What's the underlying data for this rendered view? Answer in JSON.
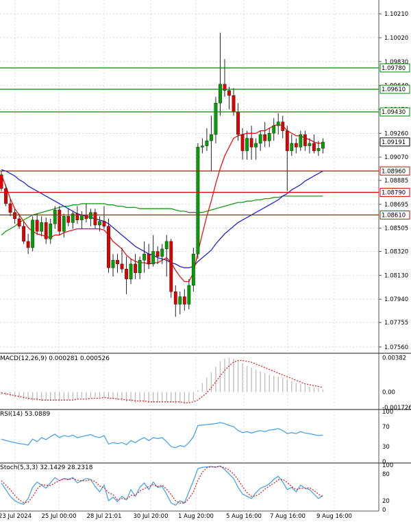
{
  "colors": {
    "up_candle": "#00a000",
    "down_candle": "#e00000",
    "wick": "#000000",
    "ma_fast": "#ee1111",
    "ma_mid": "#2222dd",
    "ma_slow": "#1a9a1a",
    "level_green": "#008800",
    "level_red": "#dd0000",
    "grid": "#b8c0c8",
    "macd_hist": "#c0c0c0",
    "macd_signal": "#dd2222",
    "rsi_line": "#4aa3e8",
    "stoch_k": "#4aa3e8",
    "stoch_d": "#dd2222"
  },
  "chart_data": [
    {
      "type": "candlestick",
      "price_axis": {
        "ticks": [
          "1.10210",
          "1.10020",
          "1.09830",
          "1.09640",
          "1.09450",
          "1.09260",
          "1.09070",
          "1.08885",
          "1.08695",
          "1.08505",
          "1.08320",
          "1.08130",
          "1.07940",
          "1.07755",
          "1.07560"
        ],
        "ylim": [
          1.0751,
          1.1032
        ],
        "grid": true,
        "price_tag": "1.09191"
      },
      "time_axis": {
        "labels": [
          "23 Jul 2024",
          "25 Jul 00:00",
          "28 Jul 21:01",
          "30 Jul 20:00",
          "1 Aug 20:00",
          "5 Aug 16:00",
          "7 Aug 16:00",
          "9 Aug 16:00"
        ]
      },
      "levels": [
        {
          "value": 1.0978,
          "label": "1.09780",
          "kind": "resistance"
        },
        {
          "value": 1.0961,
          "label": "1.09610",
          "kind": "resistance"
        },
        {
          "value": 1.0943,
          "label": "1.09430",
          "kind": "resistance"
        },
        {
          "value": 1.0896,
          "label": "1.08960",
          "kind": "support"
        },
        {
          "value": 1.0879,
          "label": "1.08790",
          "kind": "support"
        },
        {
          "value": 1.0861,
          "label": "1.08610",
          "kind": "support"
        }
      ],
      "candles": [
        [
          1.0893,
          1.0896,
          1.088,
          1.0882
        ],
        [
          1.0882,
          1.0885,
          1.0868,
          1.087
        ],
        [
          1.087,
          1.0874,
          1.086,
          1.0863
        ],
        [
          1.0863,
          1.0866,
          1.0854,
          1.0858
        ],
        [
          1.0858,
          1.0862,
          1.085,
          1.0852
        ],
        [
          1.0852,
          1.0856,
          1.0838,
          1.084
        ],
        [
          1.084,
          1.0846,
          1.083,
          1.0835
        ],
        [
          1.0835,
          1.086,
          1.0832,
          1.0857
        ],
        [
          1.0857,
          1.0862,
          1.0845,
          1.0848
        ],
        [
          1.0848,
          1.086,
          1.0844,
          1.0855
        ],
        [
          1.0855,
          1.0859,
          1.0838,
          1.0842
        ],
        [
          1.0842,
          1.0858,
          1.0838,
          1.0854
        ],
        [
          1.0854,
          1.0868,
          1.085,
          1.0865
        ],
        [
          1.0865,
          1.0868,
          1.0845,
          1.0848
        ],
        [
          1.0848,
          1.0862,
          1.0843,
          1.086
        ],
        [
          1.086,
          1.0866,
          1.0852,
          1.0855
        ],
        [
          1.0855,
          1.0864,
          1.085,
          1.0862
        ],
        [
          1.0862,
          1.0868,
          1.0854,
          1.0857
        ],
        [
          1.0857,
          1.0864,
          1.085,
          1.0861
        ],
        [
          1.0861,
          1.087,
          1.0855,
          1.0858
        ],
        [
          1.0858,
          1.0866,
          1.0852,
          1.0863
        ],
        [
          1.0863,
          1.0866,
          1.085,
          1.0853
        ],
        [
          1.0853,
          1.086,
          1.0848,
          1.0856
        ],
        [
          1.0856,
          1.0868,
          1.085,
          1.0852
        ],
        [
          1.0852,
          1.0858,
          1.0815,
          1.0819
        ],
        [
          1.0819,
          1.083,
          1.0812,
          1.0825
        ],
        [
          1.0825,
          1.083,
          1.0815,
          1.0822
        ],
        [
          1.0822,
          1.0835,
          1.0815,
          1.0818
        ],
        [
          1.0818,
          1.0828,
          1.0798,
          1.081
        ],
        [
          1.081,
          1.0826,
          1.0806,
          1.0822
        ],
        [
          1.0822,
          1.083,
          1.081,
          1.0815
        ],
        [
          1.0815,
          1.0828,
          1.081,
          1.0825
        ],
        [
          1.0825,
          1.084,
          1.0815,
          1.083
        ],
        [
          1.083,
          1.0838,
          1.0818,
          1.0822
        ],
        [
          1.0822,
          1.0845,
          1.082,
          1.0832
        ],
        [
          1.0832,
          1.0836,
          1.0822,
          1.0828
        ],
        [
          1.0828,
          1.0838,
          1.0822,
          1.0834
        ],
        [
          1.0834,
          1.0845,
          1.0812,
          1.084
        ],
        [
          1.084,
          1.0842,
          1.0795,
          1.08
        ],
        [
          1.08,
          1.0805,
          1.078,
          1.079
        ],
        [
          1.079,
          1.08,
          1.0782,
          1.0796
        ],
        [
          1.0796,
          1.0802,
          1.0785,
          1.079
        ],
        [
          1.079,
          1.081,
          1.0786,
          1.0805
        ],
        [
          1.0805,
          1.0835,
          1.08,
          1.083
        ],
        [
          1.083,
          1.0918,
          1.0826,
          1.0915
        ],
        [
          1.0915,
          1.0922,
          1.091,
          1.0916
        ],
        [
          1.0916,
          1.093,
          1.0912,
          1.092
        ],
        [
          1.092,
          1.094,
          1.0896,
          1.0925
        ],
        [
          1.0925,
          1.0955,
          1.0918,
          1.095
        ],
        [
          1.095,
          1.1006,
          1.094,
          1.0965
        ],
        [
          1.0965,
          1.0985,
          1.0955,
          1.096
        ],
        [
          1.096,
          1.0963,
          1.0945,
          1.0956
        ],
        [
          1.0956,
          1.0962,
          1.094,
          1.0943
        ],
        [
          1.0943,
          1.095,
          1.092,
          1.0925
        ],
        [
          1.0925,
          1.093,
          1.0905,
          1.0912
        ],
        [
          1.0912,
          1.0928,
          1.0905,
          1.0922
        ],
        [
          1.0922,
          1.0932,
          1.0905,
          1.0915
        ],
        [
          1.0915,
          1.0922,
          1.0905,
          1.0918
        ],
        [
          1.0918,
          1.0928,
          1.0912,
          1.0925
        ],
        [
          1.0925,
          1.0935,
          1.0915,
          1.092
        ],
        [
          1.092,
          1.093,
          1.0915,
          1.0926
        ],
        [
          1.0926,
          1.0938,
          1.092,
          1.0932
        ],
        [
          1.0932,
          1.0942,
          1.0925,
          1.0935
        ],
        [
          1.0935,
          1.094,
          1.0922,
          1.0928
        ],
        [
          1.0928,
          1.0932,
          1.088,
          1.0912
        ],
        [
          1.0912,
          1.0925,
          1.0908,
          1.0918
        ],
        [
          1.0918,
          1.0922,
          1.091,
          1.0915
        ],
        [
          1.0915,
          1.0928,
          1.0912,
          1.0925
        ],
        [
          1.0925,
          1.0928,
          1.0912,
          1.0916
        ],
        [
          1.0916,
          1.0922,
          1.091,
          1.0918
        ],
        [
          1.0918,
          1.0925,
          1.091,
          1.0912
        ],
        [
          1.0912,
          1.092,
          1.0908,
          1.0914
        ],
        [
          1.0914,
          1.0922,
          1.091,
          1.0919
        ]
      ],
      "ma_fast": [
        1.0893,
        1.0884,
        1.0874,
        1.0866,
        1.0861,
        1.0856,
        1.0851,
        1.0848,
        1.0846,
        1.0845,
        1.0844,
        1.0843,
        1.0845,
        1.0845,
        1.0847,
        1.0848,
        1.0849,
        1.085,
        1.085,
        1.085,
        1.085,
        1.085,
        1.085,
        1.0849,
        1.0845,
        1.084,
        1.0837,
        1.0834,
        1.0829,
        1.0826,
        1.0824,
        1.0823,
        1.0823,
        1.0822,
        1.0823,
        1.0823,
        1.0825,
        1.0827,
        1.0823,
        1.0817,
        1.0812,
        1.0808,
        1.0808,
        1.0815,
        1.0831,
        1.0846,
        1.086,
        1.0872,
        1.0886,
        1.0898,
        1.0908,
        1.0915,
        1.0922,
        1.0924,
        1.0925,
        1.0926,
        1.0926,
        1.0926,
        1.0928,
        1.0928,
        1.093,
        1.0932,
        1.0933,
        1.0932,
        1.0928,
        1.0926,
        1.0924,
        1.0924,
        1.0922,
        1.0921,
        1.0919,
        1.0918,
        1.0918
      ],
      "ma_mid": [
        1.0897,
        1.0896,
        1.0894,
        1.0892,
        1.0889,
        1.0887,
        1.0884,
        1.0882,
        1.088,
        1.0878,
        1.0876,
        1.0874,
        1.0872,
        1.087,
        1.0868,
        1.0866,
        1.0864,
        1.0862,
        1.0861,
        1.086,
        1.0859,
        1.0858,
        1.0857,
        1.0856,
        1.0854,
        1.0851,
        1.0848,
        1.0845,
        1.0842,
        1.0839,
        1.0836,
        1.0834,
        1.0832,
        1.083,
        1.0829,
        1.0827,
        1.0826,
        1.0825,
        1.0823,
        1.0822,
        1.082,
        1.0819,
        1.0819,
        1.082,
        1.0824,
        1.0827,
        1.083,
        1.0833,
        1.0838,
        1.0842,
        1.0846,
        1.0849,
        1.0852,
        1.0855,
        1.0857,
        1.0859,
        1.0861,
        1.0863,
        1.0865,
        1.0867,
        1.0869,
        1.0871,
        1.0873,
        1.0876,
        1.0878,
        1.0881,
        1.0883,
        1.0885,
        1.0888,
        1.089,
        1.0892,
        1.0894,
        1.0896
      ],
      "ma_slow": [
        1.0845,
        1.0848,
        1.085,
        1.0852,
        1.0855,
        1.0857,
        1.0859,
        1.0861,
        1.0862,
        1.0863,
        1.0864,
        1.0865,
        1.0866,
        1.0867,
        1.0868,
        1.0868,
        1.0869,
        1.0869,
        1.087,
        1.087,
        1.087,
        1.087,
        1.087,
        1.087,
        1.0869,
        1.0869,
        1.0868,
        1.0868,
        1.0867,
        1.0867,
        1.0867,
        1.0866,
        1.0866,
        1.0866,
        1.0866,
        1.0866,
        1.0866,
        1.0866,
        1.0866,
        1.0865,
        1.0864,
        1.0864,
        1.0863,
        1.0863,
        1.0863,
        1.0863,
        1.0864,
        1.0865,
        1.0866,
        1.0867,
        1.0868,
        1.0869,
        1.087,
        1.0871,
        1.0871,
        1.0872,
        1.0872,
        1.0873,
        1.0873,
        1.0874,
        1.0874,
        1.0875,
        1.0875,
        1.0876,
        1.0876,
        1.0876,
        1.0876,
        1.0876,
        1.0876,
        1.0876,
        1.0876,
        1.0876,
        1.0876
      ]
    },
    {
      "type": "bar",
      "label": "MACD(12,26,9) 0.000281 0.000526",
      "ticks": [
        "0.00382",
        "0.00",
        "-0.001726"
      ],
      "ylim": [
        -0.00195,
        0.0043
      ],
      "values": [
        -0.0003,
        -0.0004,
        -0.0005,
        -0.0006,
        -0.0007,
        -0.0008,
        -0.0009,
        -0.001,
        -0.001,
        -0.001,
        -0.001,
        -0.001,
        -0.001,
        -0.001,
        -0.0009,
        -0.0009,
        -0.0008,
        -0.0008,
        -0.0007,
        -0.0007,
        -0.0006,
        -0.0006,
        -0.0006,
        -0.0006,
        -0.0007,
        -0.0008,
        -0.0009,
        -0.001,
        -0.0011,
        -0.0011,
        -0.0012,
        -0.0012,
        -0.0012,
        -0.0012,
        -0.0012,
        -0.0012,
        -0.0011,
        -0.0011,
        -0.0012,
        -0.0013,
        -0.0013,
        -0.0013,
        -0.0012,
        -0.001,
        0.0002,
        0.001,
        0.0016,
        0.0022,
        0.0028,
        0.0034,
        0.0037,
        0.0038,
        0.0037,
        0.0035,
        0.0032,
        0.0029,
        0.0027,
        0.0025,
        0.0023,
        0.0021,
        0.0019,
        0.0018,
        0.0017,
        0.0016,
        0.0014,
        0.0012,
        0.001,
        0.0009,
        0.0008,
        0.0006,
        0.0005,
        0.0004,
        0.0003
      ],
      "signal": [
        -0.0001,
        -0.0002,
        -0.0003,
        -0.0004,
        -0.0005,
        -0.0006,
        -0.0007,
        -0.0008,
        -0.0008,
        -0.0009,
        -0.0009,
        -0.0009,
        -0.0009,
        -0.0009,
        -0.0009,
        -0.0009,
        -0.0009,
        -0.0008,
        -0.0008,
        -0.0008,
        -0.0007,
        -0.0007,
        -0.0007,
        -0.0006,
        -0.0007,
        -0.0007,
        -0.0008,
        -0.0008,
        -0.0009,
        -0.0009,
        -0.001,
        -0.001,
        -0.001,
        -0.0011,
        -0.0011,
        -0.0011,
        -0.0011,
        -0.0011,
        -0.0011,
        -0.0011,
        -0.0011,
        -0.0012,
        -0.0012,
        -0.0011,
        -0.0009,
        -0.0005,
        -0.0001,
        0.0005,
        0.0011,
        0.0018,
        0.0024,
        0.0029,
        0.0033,
        0.0035,
        0.0035,
        0.0034,
        0.0033,
        0.0031,
        0.0029,
        0.0027,
        0.0025,
        0.0023,
        0.0021,
        0.0019,
        0.0017,
        0.0015,
        0.0013,
        0.0011,
        0.0009,
        0.0008,
        0.0007,
        0.0006,
        0.0005
      ]
    },
    {
      "type": "line",
      "label": "RSI(14) 53.0889",
      "ticks": [
        "100",
        "70",
        "30",
        "0"
      ],
      "ylim": [
        0,
        100
      ],
      "values": [
        45,
        42,
        40,
        38,
        36,
        35,
        33,
        45,
        40,
        48,
        44,
        50,
        55,
        48,
        52,
        50,
        53,
        48,
        50,
        52,
        54,
        50,
        48,
        52,
        35,
        38,
        36,
        38,
        34,
        42,
        38,
        44,
        48,
        42,
        48,
        46,
        48,
        40,
        30,
        28,
        32,
        30,
        38,
        50,
        72,
        73,
        74,
        75,
        76,
        78,
        76,
        72,
        70,
        62,
        58,
        60,
        57,
        60,
        62,
        60,
        63,
        64,
        66,
        62,
        56,
        58,
        56,
        60,
        57,
        56,
        54,
        52,
        53
      ]
    },
    {
      "type": "line",
      "label": "Stoch(5,3,3) 32.1429 28.2318",
      "ticks": [
        "100",
        "80",
        "20",
        "0"
      ],
      "ylim": [
        0,
        100
      ],
      "k": [
        60,
        45,
        30,
        20,
        15,
        12,
        25,
        50,
        62,
        55,
        48,
        60,
        72,
        65,
        70,
        68,
        72,
        60,
        65,
        70,
        68,
        52,
        40,
        55,
        20,
        28,
        18,
        30,
        22,
        45,
        30,
        50,
        60,
        45,
        62,
        50,
        52,
        35,
        15,
        10,
        20,
        15,
        40,
        65,
        92,
        95,
        96,
        97,
        95,
        98,
        90,
        80,
        70,
        50,
        35,
        30,
        25,
        38,
        48,
        52,
        58,
        68,
        75,
        62,
        45,
        50,
        40,
        55,
        48,
        45,
        35,
        25,
        32
      ],
      "d": [
        65,
        55,
        45,
        32,
        22,
        16,
        17,
        29,
        46,
        56,
        55,
        54,
        60,
        65,
        69,
        67,
        70,
        66,
        65,
        65,
        67,
        63,
        53,
        49,
        38,
        34,
        22,
        25,
        23,
        32,
        32,
        42,
        47,
        52,
        56,
        52,
        55,
        46,
        34,
        20,
        15,
        15,
        25,
        40,
        66,
        84,
        94,
        96,
        96,
        97,
        94,
        89,
        80,
        67,
        52,
        38,
        30,
        31,
        37,
        46,
        53,
        59,
        67,
        68,
        61,
        52,
        45,
        48,
        48,
        49,
        43,
        35,
        28
      ]
    }
  ]
}
